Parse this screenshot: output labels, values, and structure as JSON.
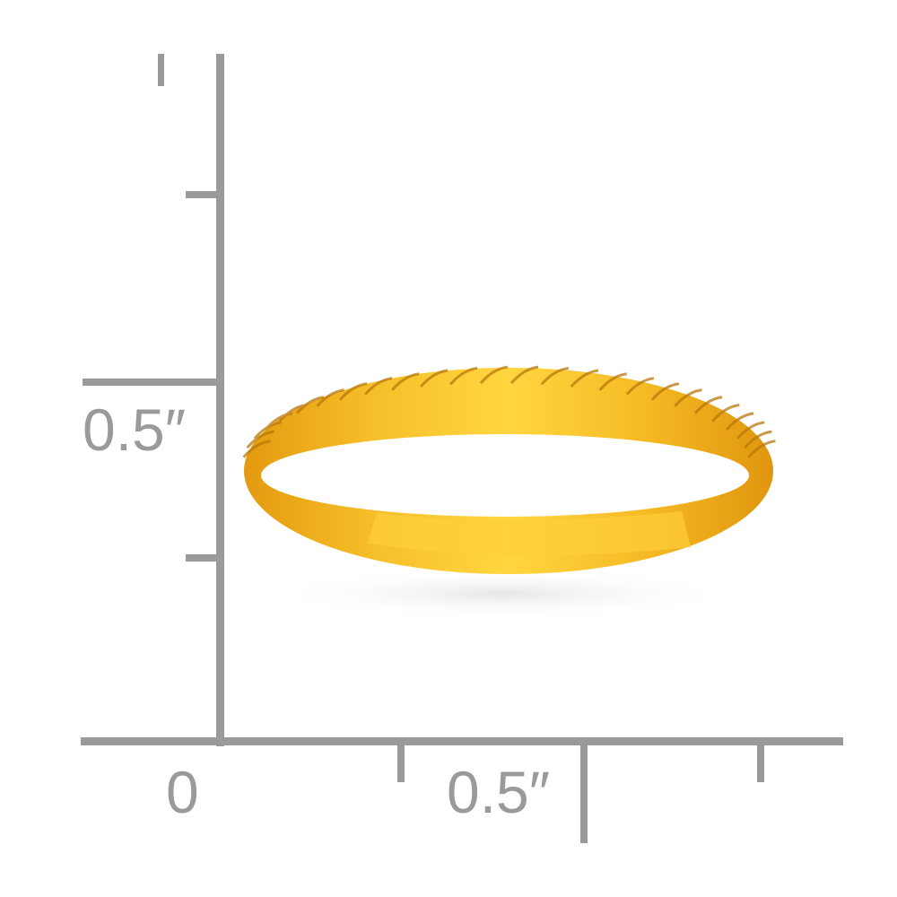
{
  "scale": {
    "vertical_label": "0.5″",
    "horizontal_origin_label": "0",
    "horizontal_label": "0.5″",
    "color": "#9a9a9a"
  },
  "product": {
    "description_icon": "gold-braided-ring",
    "metal_color": "#f2b51c"
  }
}
